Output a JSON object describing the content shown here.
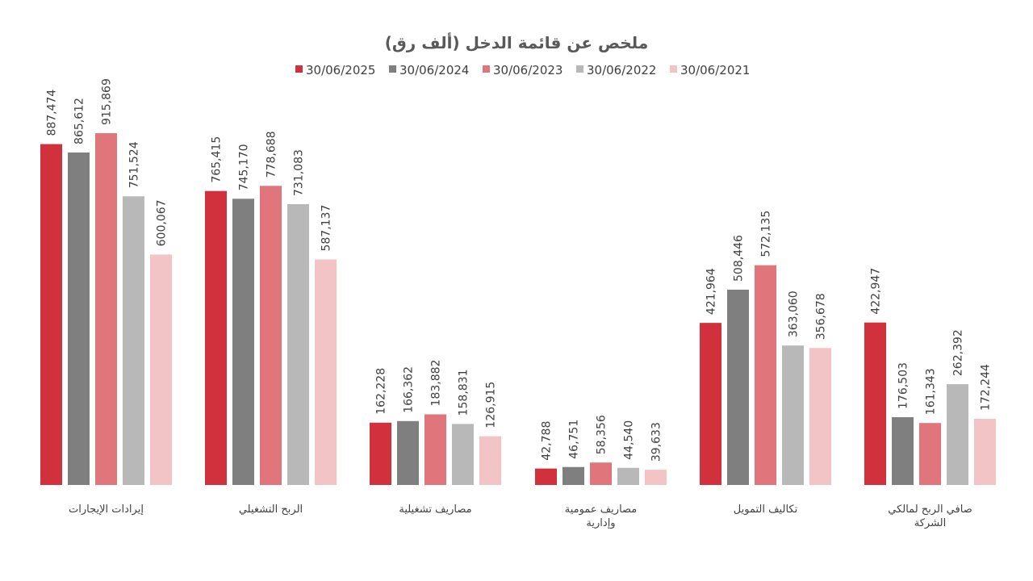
{
  "chart_data": {
    "type": "bar",
    "title": "ملخص عن قائمة الدخل (ألف رق)",
    "legend_position": "top",
    "grid": false,
    "ylim": [
      0,
      1000000
    ],
    "categories": [
      [
        "إيرادات الإيجارات"
      ],
      [
        "الربح التشغيلي"
      ],
      [
        "مصاريف تشغيلية"
      ],
      [
        "مصاريف عمومية",
        "وإدارية"
      ],
      [
        "تكاليف التمويل"
      ],
      [
        "صافي الربح لمالكي",
        "الشركة"
      ]
    ],
    "series": [
      {
        "name": "30/06/2025",
        "color": "#d0313d",
        "values": [
          887474,
          765415,
          162228,
          42788,
          421964,
          422947
        ],
        "labels": [
          "887,474",
          "765,415",
          "162,228",
          "42,788",
          "421,964",
          "422,947"
        ]
      },
      {
        "name": "30/06/2024",
        "color": "#7f7f7f",
        "values": [
          865612,
          745170,
          166362,
          46751,
          508446,
          176503
        ],
        "labels": [
          "865,612",
          "745,170",
          "166,362",
          "46,751",
          "508,446",
          "176,503"
        ]
      },
      {
        "name": "30/06/2023",
        "color": "#e0757c",
        "values": [
          915869,
          778688,
          183882,
          58356,
          572135,
          161343
        ],
        "labels": [
          "915,869",
          "778,688",
          "183,882",
          "58,356",
          "572,135",
          "161,343"
        ]
      },
      {
        "name": "30/06/2022",
        "color": "#b8b8b8",
        "values": [
          751524,
          731083,
          158831,
          44540,
          363060,
          262392
        ],
        "labels": [
          "751,524",
          "731,083",
          "158,831",
          "44,540",
          "363,060",
          "262,392"
        ]
      },
      {
        "name": "30/06/2021",
        "color": "#f2c4c6",
        "values": [
          600067,
          587137,
          126915,
          39633,
          356678,
          172244
        ],
        "labels": [
          "600,067",
          "587,137",
          "126,915",
          "39,633",
          "356,678",
          "172,244"
        ]
      }
    ]
  }
}
